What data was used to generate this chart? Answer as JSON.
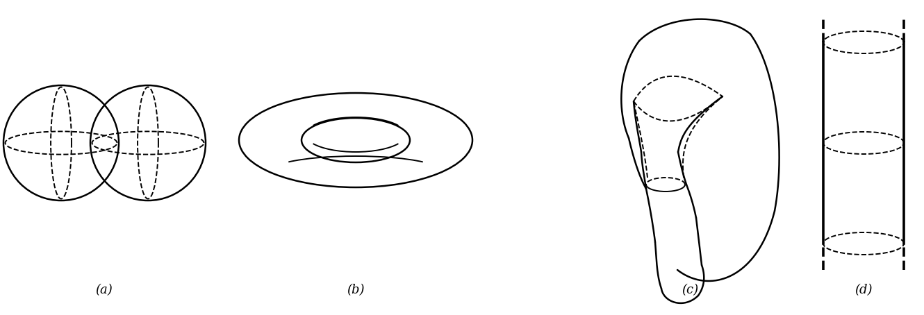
{
  "fig_width": 13.3,
  "fig_height": 4.54,
  "dpi": 100,
  "background": "#ffffff",
  "line_color": "#000000",
  "labels": [
    "(a)",
    "(b)",
    "(c)",
    "(d)"
  ],
  "label_fontsize": 13,
  "lw": 1.4,
  "lw_thick": 1.8
}
